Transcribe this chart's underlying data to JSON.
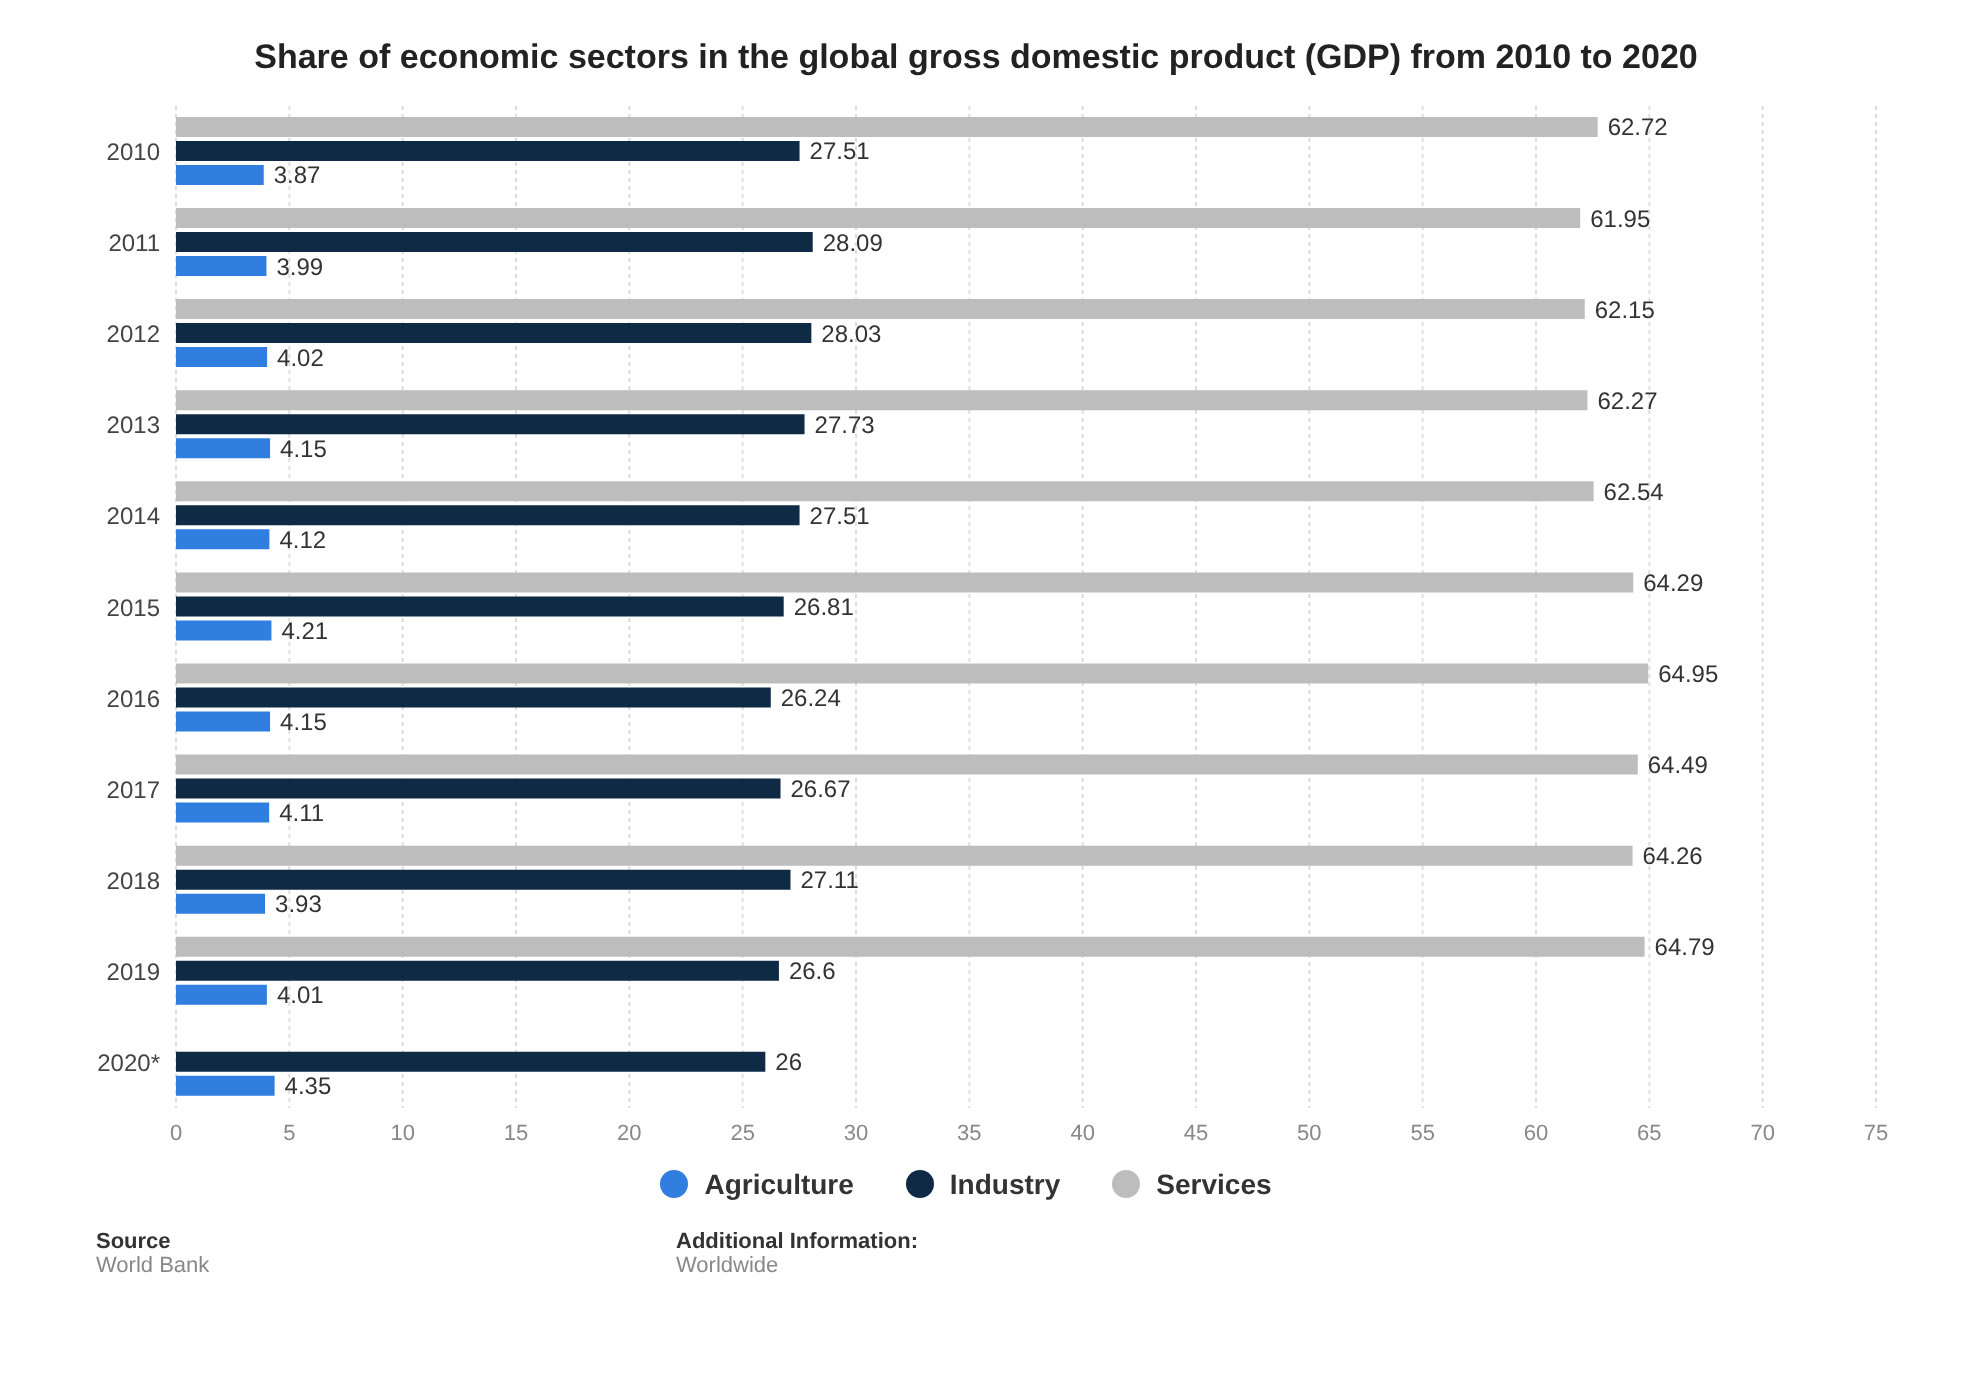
{
  "chart_data": {
    "type": "bar",
    "orientation": "horizontal",
    "title": "Share of economic sectors in the global gross domestic product (GDP) from 2010 to 2020",
    "categories": [
      "2010",
      "2011",
      "2012",
      "2013",
      "2014",
      "2015",
      "2016",
      "2017",
      "2018",
      "2019",
      "2020*"
    ],
    "series": [
      {
        "name": "Agriculture",
        "color": "#2f7ee0",
        "values": [
          3.87,
          3.99,
          4.02,
          4.15,
          4.12,
          4.21,
          4.15,
          4.11,
          3.93,
          4.01,
          4.35
        ]
      },
      {
        "name": "Industry",
        "color": "#0f2a44",
        "values": [
          27.51,
          28.09,
          28.03,
          27.73,
          27.51,
          26.81,
          26.24,
          26.67,
          27.11,
          26.6,
          26
        ]
      },
      {
        "name": "Services",
        "color": "#bdbdbd",
        "values": [
          62.72,
          61.95,
          62.15,
          62.27,
          62.54,
          64.29,
          64.95,
          64.49,
          64.26,
          64.79,
          null
        ]
      }
    ],
    "xlim": [
      0,
      75
    ],
    "xticks": [
      0,
      5,
      10,
      15,
      20,
      25,
      30,
      35,
      40,
      45,
      50,
      55,
      60,
      65,
      70,
      75
    ],
    "grid": "x",
    "legend": "bottom",
    "data_labels": true,
    "annotations": [
      "Source",
      "World Bank",
      "Additional Information:",
      "Worldwide"
    ]
  }
}
